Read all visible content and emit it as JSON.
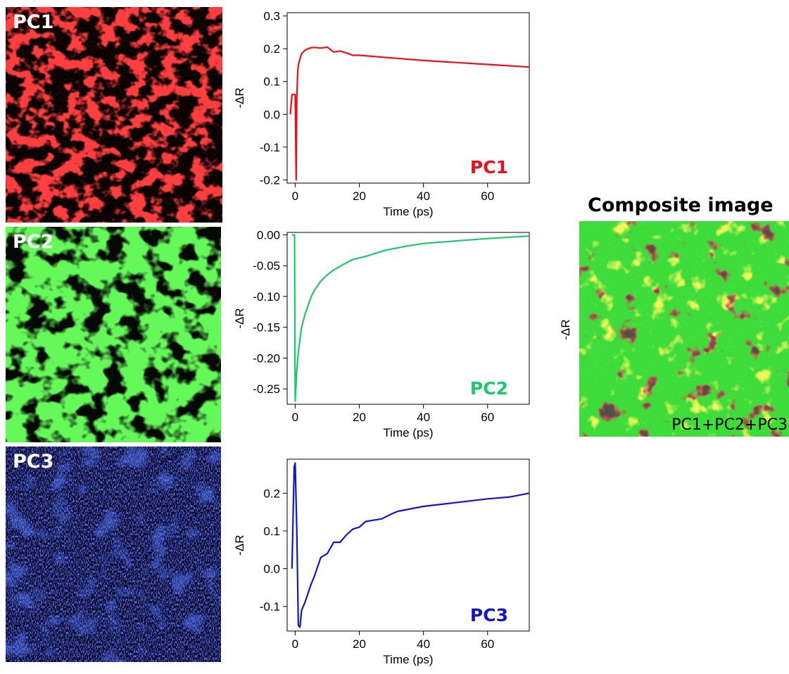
{
  "maps": [
    {
      "label": "PC1",
      "color": "#ff1010"
    },
    {
      "label": "PC2",
      "color": "#22f018"
    },
    {
      "label": "PC3",
      "color": "#1a2cff"
    }
  ],
  "composite": {
    "title": "Composite image",
    "ylabel": "-ΔR",
    "label": "PC1+PC2+PC3"
  },
  "chart_data": [
    {
      "type": "line",
      "series": [
        {
          "name": "PC1",
          "color": "#e8101a",
          "x": [
            -1.5,
            -1,
            0,
            0.3,
            0.5,
            0.8,
            1,
            1.5,
            2,
            3,
            4,
            5,
            6,
            8,
            10,
            12,
            14,
            16,
            18,
            20,
            30,
            40,
            50,
            60,
            70,
            73
          ],
          "y": [
            0.0,
            0.06,
            0.06,
            -0.2,
            0.05,
            0.13,
            0.15,
            0.17,
            0.185,
            0.195,
            0.2,
            0.203,
            0.204,
            0.202,
            0.205,
            0.19,
            0.193,
            0.187,
            0.18,
            0.18,
            0.172,
            0.164,
            0.158,
            0.152,
            0.146,
            0.144
          ]
        }
      ],
      "xlabel": "Time (ps)",
      "ylabel": "-ΔR",
      "xlim": [
        -2.5,
        73
      ],
      "ylim": [
        -0.21,
        0.31
      ],
      "xticks": [
        0,
        20,
        40,
        60
      ],
      "yticks": [
        -0.2,
        -0.1,
        0.0,
        0.1,
        0.2,
        0.3
      ],
      "ytick_labels": [
        "-0.2",
        "-0.1",
        "0.0",
        "0.1",
        "0.2",
        "0.3"
      ],
      "annotation": "PC1"
    },
    {
      "type": "line",
      "series": [
        {
          "name": "PC2",
          "color": "#1ec86a",
          "x": [
            -1,
            -0.2,
            0,
            0.5,
            1,
            2,
            3,
            4,
            5,
            6,
            8,
            10,
            12,
            15,
            18,
            22,
            28,
            35,
            40,
            50,
            60,
            73
          ],
          "y": [
            0.0,
            0.0,
            -0.27,
            -0.22,
            -0.19,
            -0.15,
            -0.13,
            -0.115,
            -0.1,
            -0.09,
            -0.075,
            -0.065,
            -0.057,
            -0.048,
            -0.04,
            -0.035,
            -0.025,
            -0.018,
            -0.014,
            -0.01,
            -0.006,
            -0.002
          ]
        }
      ],
      "xlabel": "Time (ps)",
      "ylabel": "-ΔR",
      "xlim": [
        -2.5,
        73
      ],
      "ylim": [
        -0.275,
        0.004
      ],
      "xticks": [
        0,
        20,
        40,
        60
      ],
      "yticks": [
        -0.25,
        -0.2,
        -0.15,
        -0.1,
        -0.05,
        0.0
      ],
      "ytick_labels": [
        "-0.25",
        "-0.20",
        "-0.15",
        "-0.10",
        "-0.05",
        "0.00"
      ],
      "annotation": "PC2"
    },
    {
      "type": "line",
      "series": [
        {
          "name": "PC3",
          "color": "#1515c8",
          "x": [
            -1,
            -0.3,
            0,
            0.5,
            1,
            1.5,
            2,
            3,
            4,
            5,
            6,
            8,
            10,
            12,
            14,
            16,
            18,
            20,
            22,
            24,
            27,
            30,
            32,
            40,
            50,
            60,
            67,
            73
          ],
          "y": [
            0.0,
            0.27,
            0.28,
            0.1,
            -0.15,
            -0.155,
            -0.11,
            -0.09,
            -0.065,
            -0.04,
            -0.02,
            0.03,
            0.04,
            0.07,
            0.07,
            0.09,
            0.105,
            0.11,
            0.125,
            0.128,
            0.132,
            0.145,
            0.152,
            0.165,
            0.175,
            0.185,
            0.19,
            0.2
          ]
        }
      ],
      "xlabel": "Time (ps)",
      "ylabel": "-ΔR",
      "xlim": [
        -2.5,
        73
      ],
      "ylim": [
        -0.165,
        0.29
      ],
      "xticks": [
        0,
        20,
        40,
        60
      ],
      "yticks": [
        -0.1,
        0.0,
        0.1,
        0.2
      ],
      "ytick_labels": [
        "-0.1",
        "0.0",
        "0.1",
        "0.2"
      ],
      "annotation": "PC3"
    }
  ]
}
